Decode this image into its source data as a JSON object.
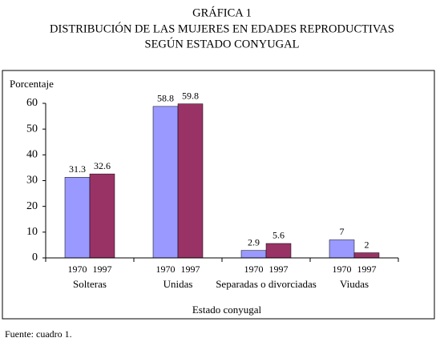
{
  "chart_data": {
    "type": "bar",
    "title": [
      "GRÁFICA 1",
      "DISTRIBUCIÓN DE LAS MUJERES EN EDADES REPRODUCTIVAS",
      "SEGÚN ESTADO CONYUGAL"
    ],
    "y_label": "Porcentaje",
    "x_label": "Estado conyugal",
    "categories": [
      "Solteras",
      "Unidas",
      "Separadas o divorciadas",
      "Viudas"
    ],
    "series": [
      {
        "name": "1970",
        "color": "#9999ff",
        "values": [
          31.3,
          58.8,
          2.9,
          7
        ]
      },
      {
        "name": "1997",
        "color": "#993366",
        "values": [
          32.6,
          59.8,
          5.6,
          2
        ]
      }
    ],
    "ylim": [
      0,
      60
    ],
    "yticks": [
      0,
      10,
      20,
      30,
      40,
      50,
      60
    ],
    "source": "Fuente: cuadro 1."
  }
}
